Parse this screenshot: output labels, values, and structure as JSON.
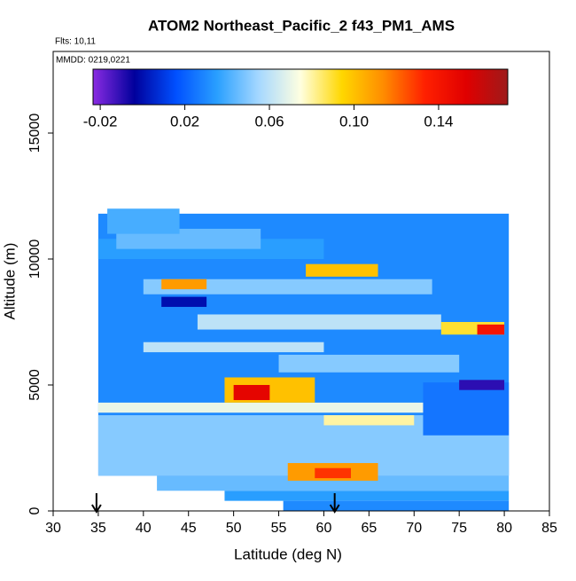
{
  "chart_data": {
    "type": "heatmap",
    "title": "ATOM2 Northeast_Pacific_2 f43_PM1_AMS",
    "annotations": [
      "Flts: 10,11",
      "MMDD: 0219,0221"
    ],
    "x_label": "Latitude (deg N)",
    "y_label": "Altitude (m)",
    "xlim": [
      30,
      85
    ],
    "xticks": [
      30,
      35,
      40,
      45,
      50,
      55,
      60,
      65,
      70,
      75,
      80,
      85
    ],
    "ylim": [
      0,
      18240
    ],
    "yticks": [
      0,
      5000,
      10000,
      15000
    ],
    "clim": [
      -0.0234,
      0.1727
    ],
    "cticks": [
      -0.02,
      0.02,
      0.06,
      {
        "value": 0.1,
        "label": "0.10"
      },
      0.14
    ],
    "colorscale": [
      "#8a2be2",
      "#00009c",
      "#0050ff",
      "#2aa0ff",
      "#a6d8ff",
      "#ffffe0",
      "#ffd700",
      "#ff8c00",
      "#ff2000",
      "#e00000",
      "#9e1a1a"
    ],
    "arrows_lat": [
      34.8,
      61.2
    ],
    "cells": [
      [
        35,
        80.5,
        1400,
        11800,
        0.03
      ],
      [
        35,
        80.5,
        1400,
        3800,
        0.05
      ],
      [
        41.5,
        80.5,
        800,
        1400,
        0.045
      ],
      [
        49,
        80.5,
        400,
        800,
        0.035
      ],
      [
        55.5,
        80.5,
        0,
        400,
        0.03
      ],
      [
        56,
        66,
        1200,
        1900,
        0.11
      ],
      [
        59,
        63,
        1300,
        1700,
        0.13
      ],
      [
        35,
        80,
        3900,
        4300,
        0.07
      ],
      [
        60,
        70,
        3400,
        3800,
        0.08
      ],
      [
        71,
        80.5,
        3000,
        5100,
        0.025
      ],
      [
        49,
        59,
        4300,
        5300,
        0.1
      ],
      [
        50,
        54,
        4400,
        5000,
        0.15
      ],
      [
        75,
        80,
        4800,
        5200,
        -0.01
      ],
      [
        55,
        75,
        5500,
        6200,
        0.05
      ],
      [
        40,
        60,
        6300,
        6700,
        0.06
      ],
      [
        46,
        73,
        7200,
        7800,
        0.06
      ],
      [
        73,
        80,
        7000,
        7500,
        0.09
      ],
      [
        77,
        80,
        7000,
        7400,
        0.14
      ],
      [
        42,
        47,
        8100,
        8500,
        0.0
      ],
      [
        40,
        72,
        8600,
        9200,
        0.05
      ],
      [
        42,
        47,
        8800,
        9200,
        0.11
      ],
      [
        58,
        66,
        9300,
        9800,
        0.1
      ],
      [
        35,
        60,
        10000,
        10800,
        0.035
      ],
      [
        37,
        53,
        10400,
        11200,
        0.045
      ],
      [
        36,
        44,
        11000,
        12000,
        0.04
      ]
    ]
  }
}
